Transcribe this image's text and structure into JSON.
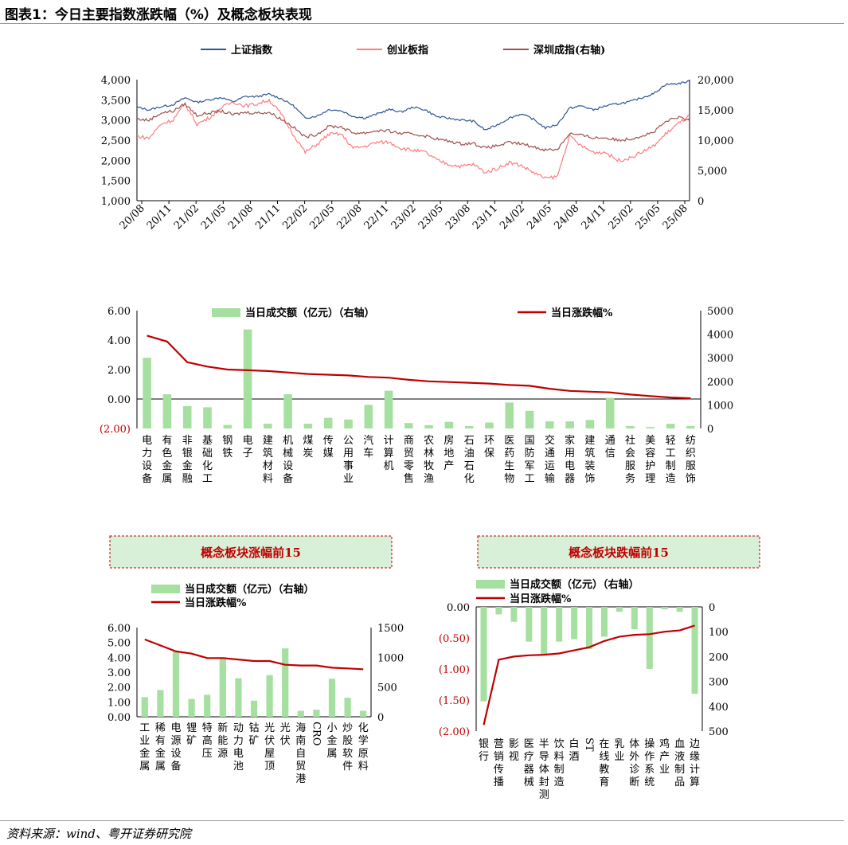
{
  "title": "图表1：今日主要指数涨跌幅（%）及概念板块表现",
  "source": "资料来源：wind、粤开证券研究院",
  "colors": {
    "sh": "#2f5597",
    "cy": "#ff7c80",
    "sz": "#a05050",
    "bar": "#a6e0a0",
    "line": "#c00000",
    "box_fill": "#d8f0d8",
    "box_border": "#c00000"
  },
  "chart_data": [
    {
      "type": "line",
      "legend": [
        "上证指数",
        "创业板指",
        "深圳成指(右轴)"
      ],
      "x_ticks": [
        "20/08",
        "20/11",
        "21/02",
        "21/05",
        "21/08",
        "21/11",
        "22/02",
        "22/05",
        "22/08",
        "22/11",
        "23/02",
        "23/05",
        "23/08",
        "23/11",
        "24/02",
        "24/05",
        "24/08",
        "24/11",
        "25/02",
        "25/05",
        "25/08"
      ],
      "y_left": {
        "ticks": [
          "1,000",
          "1,500",
          "2,000",
          "2,500",
          "3,000",
          "3,500",
          "4,000"
        ],
        "range": [
          1000,
          4000
        ]
      },
      "y_right": {
        "ticks": [
          "0",
          "5,000",
          "10,000",
          "15,000",
          "20,000"
        ],
        "range": [
          0,
          20000
        ]
      },
      "series": [
        {
          "name": "上证指数",
          "axis": "left",
          "values": [
            3320,
            3250,
            3330,
            3380,
            3550,
            3440,
            3500,
            3560,
            3450,
            3580,
            3580,
            3640,
            3530,
            3360,
            3050,
            3100,
            3260,
            3230,
            3090,
            3050,
            3150,
            3260,
            3200,
            3320,
            3250,
            3080,
            3040,
            3000,
            2970,
            2750,
            2880,
            3050,
            3150,
            3020,
            2800,
            2890,
            3290,
            3350,
            3250,
            3350,
            3400,
            3450,
            3550,
            3650,
            3880,
            3900,
            3960
          ]
        },
        {
          "name": "创业板指",
          "axis": "left",
          "values": [
            2600,
            2550,
            2900,
            3000,
            3400,
            2900,
            3050,
            3300,
            3450,
            3350,
            3400,
            3500,
            3150,
            2650,
            2200,
            2400,
            2650,
            2650,
            2300,
            2350,
            2450,
            2450,
            2300,
            2250,
            2200,
            2000,
            1900,
            1850,
            1900,
            1700,
            1800,
            1950,
            1870,
            1700,
            1550,
            1600,
            2600,
            2350,
            2200,
            2200,
            2000,
            2050,
            2200,
            2350,
            2650,
            2900,
            3100
          ]
        },
        {
          "name": "深圳成指(右轴)",
          "axis": "right",
          "values": [
            13500,
            13300,
            14500,
            14800,
            16000,
            14100,
            14500,
            14800,
            14200,
            14600,
            14500,
            14600,
            13500,
            12200,
            10500,
            11000,
            12300,
            12200,
            11200,
            11200,
            11600,
            11500,
            11100,
            11000,
            10700,
            10200,
            9800,
            9400,
            9500,
            8700,
            9100,
            9600,
            9400,
            8900,
            8400,
            8500,
            11100,
            10800,
            10400,
            10400,
            10000,
            10200,
            10700,
            11300,
            13000,
            13800,
            13200
          ]
        }
      ]
    },
    {
      "type": "bar",
      "legend": [
        "当日成交额（亿元）（右轴）",
        "当日涨跌幅%"
      ],
      "categories": [
        "电力设备",
        "有色金属",
        "非银金融",
        "基础化工",
        "钢铁",
        "电子",
        "建筑材料",
        "机械设备",
        "煤炭",
        "传媒",
        "公用事业",
        "汽车",
        "计算机",
        "商贸零售",
        "农林牧渔",
        "房地产",
        "石油石化",
        "环保",
        "医药生物",
        "国防军工",
        "交通运输",
        "家用电器",
        "建筑装饰",
        "通信",
        "社会服务",
        "美容护理",
        "轻工制造",
        "纺织服饰"
      ],
      "series": [
        {
          "name": "当日成交额（亿元）（右轴）",
          "axis": "right",
          "values": [
            3000,
            1450,
            950,
            900,
            150,
            4200,
            200,
            1450,
            200,
            450,
            380,
            1000,
            1600,
            230,
            140,
            280,
            100,
            250,
            1100,
            750,
            300,
            300,
            360,
            1300,
            100,
            60,
            200,
            100
          ]
        },
        {
          "name": "当日涨跌幅%",
          "axis": "left",
          "values": [
            4.3,
            3.9,
            2.5,
            2.2,
            2.0,
            1.95,
            1.9,
            1.8,
            1.7,
            1.65,
            1.6,
            1.5,
            1.45,
            1.3,
            1.2,
            1.15,
            1.1,
            1.05,
            0.95,
            0.9,
            0.7,
            0.55,
            0.5,
            0.45,
            0.3,
            0.2,
            0.1,
            0.05
          ]
        }
      ],
      "y_left": {
        "ticks": [
          "6.00",
          "4.00",
          "2.00",
          "0.00",
          "(2.00)"
        ],
        "range": [
          -2,
          6
        ]
      },
      "y_right": {
        "ticks": [
          "5000",
          "4000",
          "3000",
          "2000",
          "1000",
          "0"
        ],
        "range": [
          0,
          5000
        ]
      }
    },
    {
      "type": "bar",
      "box_title": "概念板块涨幅前15",
      "legend": [
        "当日成交额（亿元）（右轴）",
        "当日涨跌幅%"
      ],
      "categories": [
        "工业金属",
        "稀有金属",
        "电源设备",
        "锂矿",
        "特高压",
        "新能源",
        "动力电池",
        "钴矿",
        "光伏屋顶",
        "光伏",
        "海南自贸港",
        "CRO",
        "小金属",
        "炒股软件",
        "化学原料"
      ],
      "series": [
        {
          "name": "当日成交额（亿元）（右轴）",
          "axis": "right",
          "values": [
            330,
            450,
            1100,
            300,
            370,
            1000,
            650,
            270,
            700,
            1150,
            100,
            120,
            640,
            320,
            100
          ]
        },
        {
          "name": "当日涨跌幅%",
          "axis": "left",
          "values": [
            5.2,
            4.8,
            4.4,
            4.25,
            3.95,
            3.95,
            3.85,
            3.75,
            3.75,
            3.5,
            3.45,
            3.45,
            3.3,
            3.25,
            3.2
          ]
        }
      ],
      "y_left": {
        "ticks": [
          "6.00",
          "5.00",
          "4.00",
          "3.00",
          "2.00",
          "1.00",
          "0.00"
        ],
        "range": [
          0,
          6
        ]
      },
      "y_right": {
        "ticks": [
          "1500",
          "1000",
          "500",
          "0"
        ],
        "range": [
          0,
          1500
        ]
      }
    },
    {
      "type": "bar",
      "box_title": "概念板块跌幅前15",
      "legend": [
        "当日成交额（亿元）（右轴）",
        "当日涨跌幅%"
      ],
      "categories": [
        "银行",
        "营销传播",
        "影视",
        "医疗器械",
        "半导体封测",
        "饮料制造",
        "白酒",
        "ST",
        "在线教育",
        "乳业",
        "体外诊断",
        "操作系统",
        "鸡产业",
        "血液制品",
        "边缘计算"
      ],
      "series": [
        {
          "name": "当日成交额（亿元）（右轴）",
          "axis": "right",
          "values": [
            380,
            30,
            60,
            140,
            190,
            140,
            130,
            170,
            120,
            20,
            90,
            250,
            10,
            20,
            350
          ]
        },
        {
          "name": "当日涨跌幅%",
          "axis": "left",
          "values": [
            -1.9,
            -0.85,
            -0.8,
            -0.78,
            -0.77,
            -0.75,
            -0.7,
            -0.65,
            -0.55,
            -0.48,
            -0.45,
            -0.44,
            -0.4,
            -0.38,
            -0.3
          ]
        }
      ],
      "y_left": {
        "ticks": [
          "0.00",
          "(0.50)",
          "(1.00)",
          "(1.50)",
          "(2.00)"
        ],
        "range": [
          -2,
          0
        ]
      },
      "y_right": {
        "ticks": [
          "0",
          "100",
          "200",
          "300",
          "400",
          "500"
        ],
        "range": [
          0,
          500
        ]
      }
    }
  ]
}
